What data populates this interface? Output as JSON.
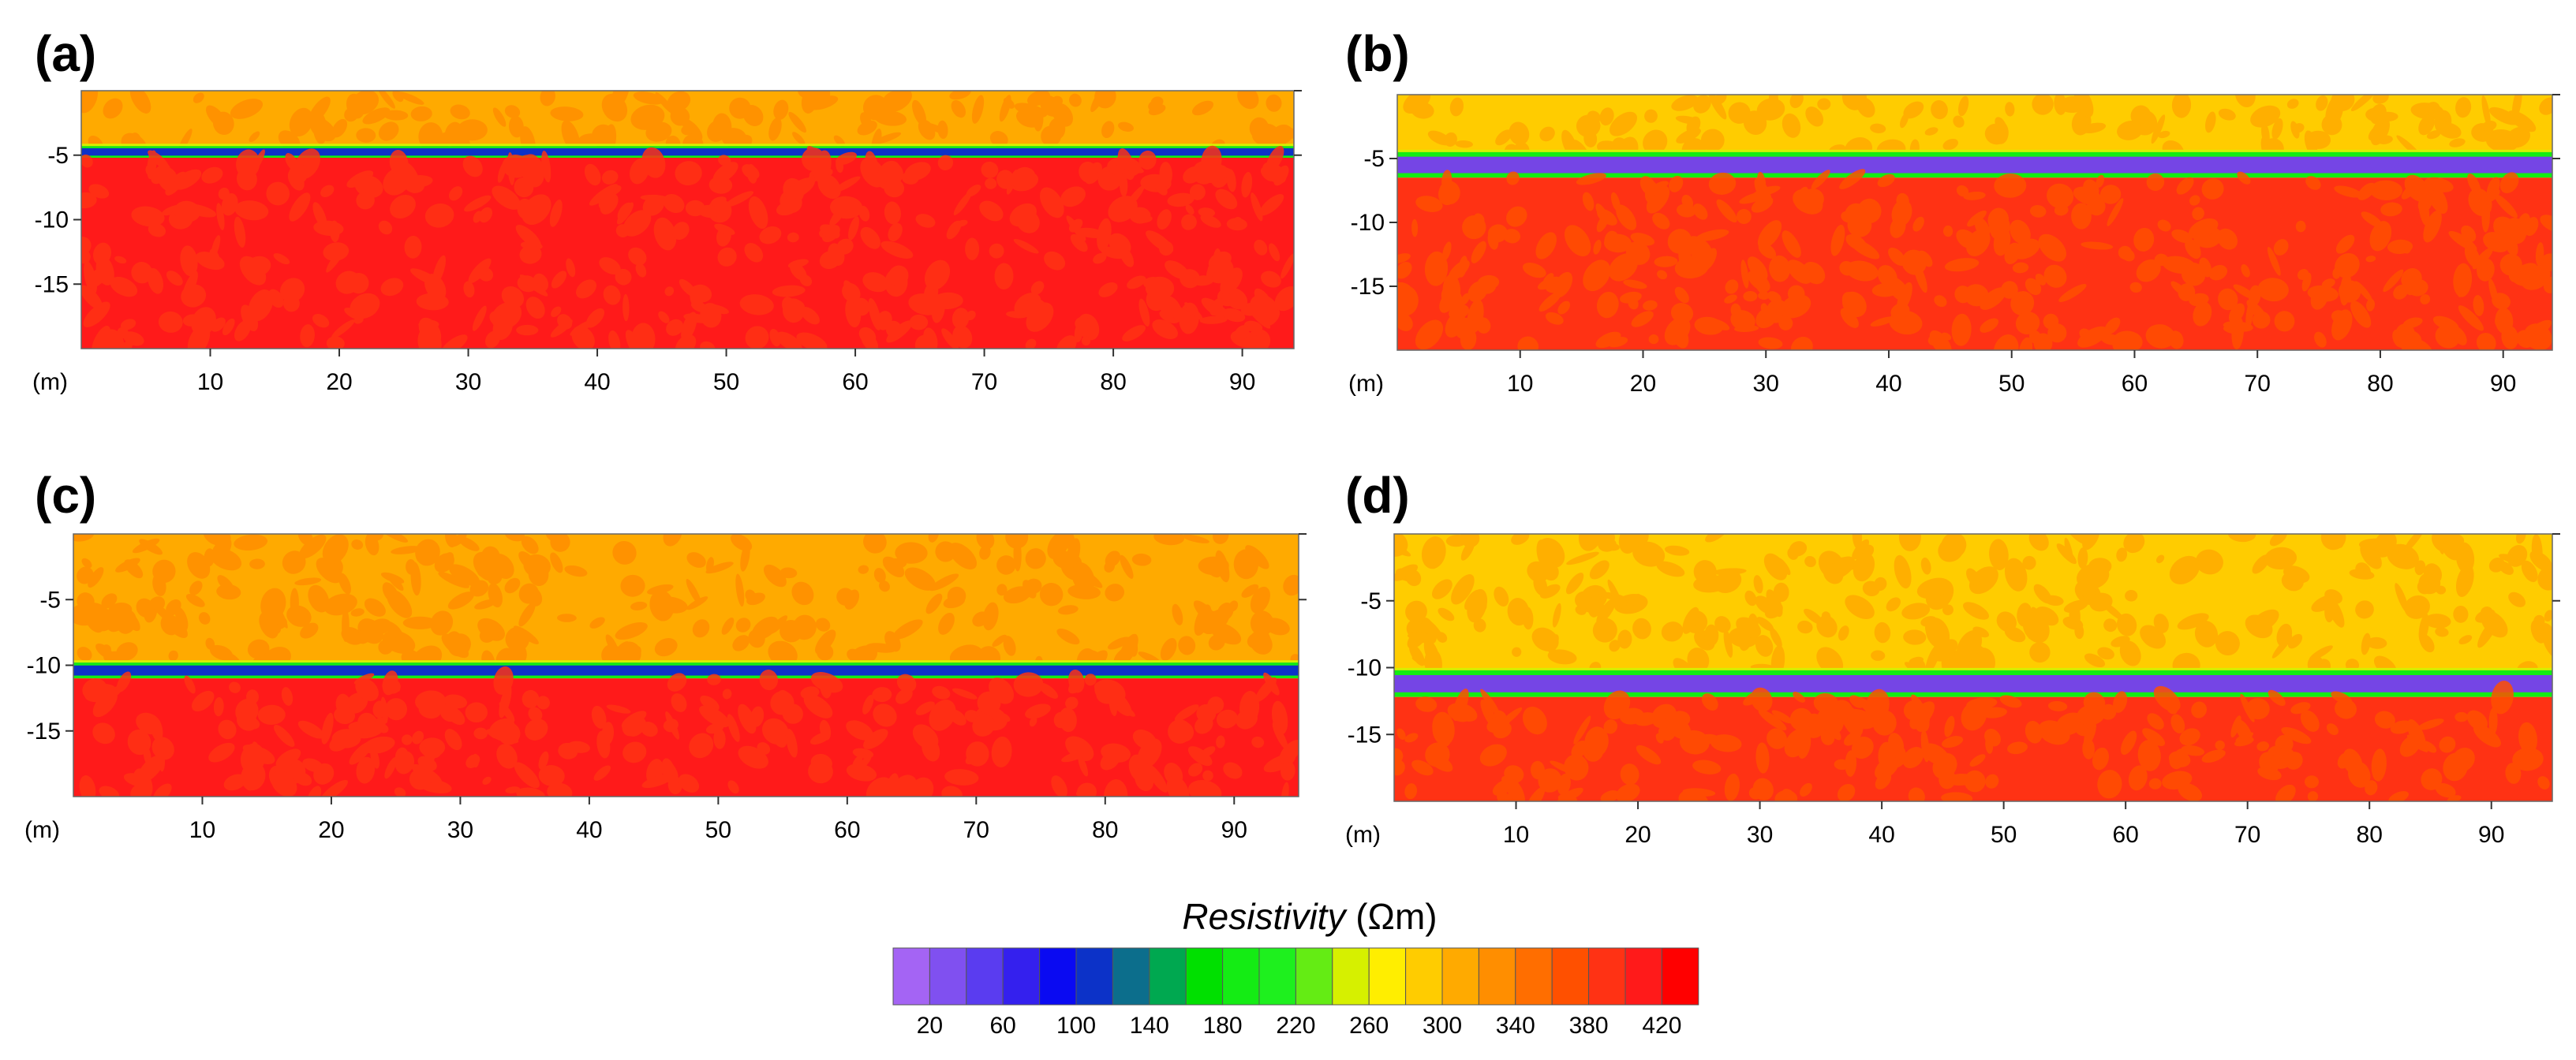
{
  "colorbar": {
    "title_italic": "Resistivity",
    "title_unit": "(Ωm)",
    "tick_labels": [
      "20",
      "60",
      "100",
      "140",
      "180",
      "220",
      "260",
      "300",
      "340",
      "380",
      "420"
    ],
    "bins": [
      {
        "lo": 0,
        "hi": 20,
        "color": "#A464F4"
      },
      {
        "lo": 20,
        "hi": 40,
        "color": "#8050F0"
      },
      {
        "lo": 40,
        "hi": 60,
        "color": "#5A3CF0"
      },
      {
        "lo": 60,
        "hi": 80,
        "color": "#3420EE"
      },
      {
        "lo": 80,
        "hi": 100,
        "color": "#0A0AF2"
      },
      {
        "lo": 100,
        "hi": 120,
        "color": "#0C32C8"
      },
      {
        "lo": 120,
        "hi": 140,
        "color": "#0C6E8C"
      },
      {
        "lo": 140,
        "hi": 160,
        "color": "#00A850"
      },
      {
        "lo": 160,
        "hi": 180,
        "color": "#00E000"
      },
      {
        "lo": 180,
        "hi": 200,
        "color": "#14EC14"
      },
      {
        "lo": 200,
        "hi": 220,
        "color": "#1EF01E"
      },
      {
        "lo": 220,
        "hi": 240,
        "color": "#64EC14"
      },
      {
        "lo": 240,
        "hi": 260,
        "color": "#D6F000"
      },
      {
        "lo": 260,
        "hi": 280,
        "color": "#FFEE00"
      },
      {
        "lo": 280,
        "hi": 300,
        "color": "#FFCC00"
      },
      {
        "lo": 300,
        "hi": 320,
        "color": "#FFAA00"
      },
      {
        "lo": 320,
        "hi": 340,
        "color": "#FF8E00"
      },
      {
        "lo": 340,
        "hi": 360,
        "color": "#FF6E00"
      },
      {
        "lo": 360,
        "hi": 380,
        "color": "#FF5000"
      },
      {
        "lo": 380,
        "hi": 400,
        "color": "#FF3214"
      },
      {
        "lo": 400,
        "hi": 420,
        "color": "#FF1A1A"
      },
      {
        "lo": 420,
        "hi": 440,
        "color": "#FF0000"
      }
    ]
  },
  "chart_data": [
    {
      "type": "heatmap",
      "panel": "(a)",
      "xlabel": "(m)",
      "x_ticks": [
        10,
        20,
        30,
        40,
        50,
        60,
        70,
        80,
        90
      ],
      "y_ticks": [
        -5,
        -10,
        -15
      ],
      "xlim": [
        0,
        94
      ],
      "ylim": [
        -20,
        0
      ],
      "layers": [
        {
          "top": 0,
          "bottom": -4.3,
          "resistivity": 300
        },
        {
          "top": -4.3,
          "bottom": -5.2,
          "resistivity": 100,
          "note": "thin conductive layer"
        },
        {
          "top": -5.2,
          "bottom": -20,
          "resistivity": 400
        }
      ]
    },
    {
      "type": "heatmap",
      "panel": "(b)",
      "xlabel": "(m)",
      "x_ticks": [
        10,
        20,
        30,
        40,
        50,
        60,
        70,
        80,
        90
      ],
      "y_ticks": [
        -5,
        -10,
        -15
      ],
      "xlim": [
        0,
        94
      ],
      "ylim": [
        -20,
        0
      ],
      "layers": [
        {
          "top": 0,
          "bottom": -4.5,
          "resistivity": 290
        },
        {
          "top": -4.5,
          "bottom": -6.5,
          "resistivity": 30,
          "note": "thick conductive layer"
        },
        {
          "top": -6.5,
          "bottom": -20,
          "resistivity": 380
        }
      ]
    },
    {
      "type": "heatmap",
      "panel": "(c)",
      "xlabel": "(m)",
      "x_ticks": [
        10,
        20,
        30,
        40,
        50,
        60,
        70,
        80,
        90
      ],
      "y_ticks": [
        -5,
        -10,
        -15
      ],
      "xlim": [
        0,
        95
      ],
      "ylim": [
        -20,
        0
      ],
      "layers": [
        {
          "top": 0,
          "bottom": -9.8,
          "resistivity": 300
        },
        {
          "top": -9.8,
          "bottom": -11.0,
          "resistivity": 100,
          "note": "thin conductive layer"
        },
        {
          "top": -11.0,
          "bottom": -20,
          "resistivity": 400
        }
      ]
    },
    {
      "type": "heatmap",
      "panel": "(d)",
      "xlabel": "(m)",
      "x_ticks": [
        10,
        20,
        30,
        40,
        50,
        60,
        70,
        80,
        90
      ],
      "y_ticks": [
        -5,
        -10,
        -15
      ],
      "xlim": [
        0,
        95
      ],
      "ylim": [
        -20,
        0
      ],
      "layers": [
        {
          "top": 0,
          "bottom": -10.2,
          "resistivity": 290
        },
        {
          "top": -10.2,
          "bottom": -12.2,
          "resistivity": 30,
          "note": "thick conductive layer"
        },
        {
          "top": -12.2,
          "bottom": -20,
          "resistivity": 380
        }
      ]
    }
  ]
}
